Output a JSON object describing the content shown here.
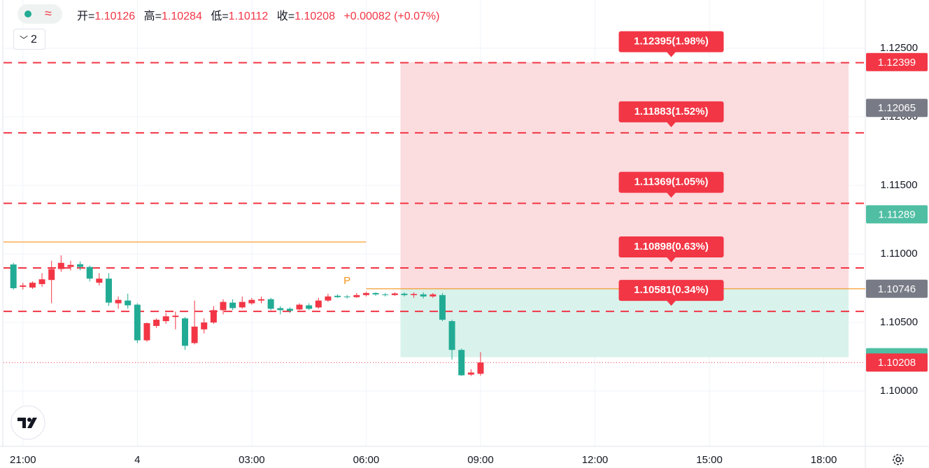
{
  "header": {
    "labels": [
      "开=",
      "高=",
      "低=",
      "收="
    ],
    "change": "+0.00082 (+0.07%)",
    "collapse_count": "2"
  },
  "chart_data": {
    "type": "candlestick",
    "x": [
      -3.25,
      -3,
      -2.75,
      -2.5,
      -2.25,
      -2,
      -1.75,
      -1.5,
      -1.25,
      -1,
      -0.75,
      -0.5,
      -0.25,
      0,
      0.25,
      0.5,
      0.75,
      1,
      1.25,
      1.5,
      1.75,
      2,
      2.25,
      2.5,
      2.75,
      3,
      3.25,
      3.5,
      3.75,
      4,
      4.25,
      4.5,
      4.75,
      5,
      5.25,
      5.5,
      5.75,
      6,
      6.25,
      6.5,
      6.75,
      7,
      7.25,
      7.5,
      7.75,
      8,
      8.25,
      8.5,
      8.75,
      9
    ],
    "open": [
      1.10923,
      1.1076,
      1.10755,
      1.1078,
      1.1081,
      1.1089,
      1.10905,
      1.10925,
      1.10905,
      1.1079,
      1.1082,
      1.1064,
      1.1066,
      1.1063,
      1.1037,
      1.10475,
      1.1051,
      1.1054,
      1.1053,
      1.1035,
      1.1045,
      1.105,
      1.1059,
      1.10645,
      1.1061,
      1.1064,
      1.1066,
      1.1067,
      1.10605,
      1.106,
      1.10595,
      1.10625,
      1.1061,
      1.1066,
      1.10695,
      1.1069,
      1.10685,
      1.107,
      1.10715,
      1.10705,
      1.107,
      1.1071,
      1.107,
      1.10705,
      1.1069,
      1.107,
      1.1051,
      1.103,
      1.1012,
      1.10126
    ],
    "high": [
      1.10935,
      1.1079,
      1.108,
      1.1086,
      1.1095,
      1.1099,
      1.1095,
      1.10945,
      1.10915,
      1.1086,
      1.1086,
      1.1069,
      1.1071,
      1.1064,
      1.105,
      1.1053,
      1.1057,
      1.1058,
      1.1054,
      1.1066,
      1.1053,
      1.1062,
      1.1067,
      1.1067,
      1.1069,
      1.1068,
      1.1069,
      1.1068,
      1.1062,
      1.1061,
      1.1064,
      1.1064,
      1.1068,
      1.1071,
      1.10705,
      1.107,
      1.10715,
      1.10725,
      1.1072,
      1.10715,
      1.1072,
      1.1072,
      1.1072,
      1.1072,
      1.10715,
      1.10715,
      1.1052,
      1.1031,
      1.1016,
      1.10284
    ],
    "low": [
      1.1074,
      1.1074,
      1.10745,
      1.1076,
      1.1064,
      1.1087,
      1.1088,
      1.1088,
      1.108,
      1.1077,
      1.1062,
      1.106,
      1.106,
      1.1035,
      1.1036,
      1.1046,
      1.1049,
      1.1045,
      1.103,
      1.1034,
      1.1042,
      1.1049,
      1.1056,
      1.1059,
      1.106,
      1.1063,
      1.1064,
      1.1059,
      1.1056,
      1.1057,
      1.1059,
      1.1059,
      1.106,
      1.1065,
      1.1068,
      1.10675,
      1.1068,
      1.1069,
      1.10695,
      1.1069,
      1.10695,
      1.1069,
      1.1068,
      1.10675,
      1.1068,
      1.1051,
      1.1023,
      1.1011,
      1.1011,
      1.10112
    ],
    "close": [
      1.1075,
      1.1077,
      1.1079,
      1.10815,
      1.1089,
      1.10935,
      1.1092,
      1.10905,
      1.1082,
      1.1082,
      1.10645,
      1.10665,
      1.10625,
      1.1037,
      1.10495,
      1.1052,
      1.10545,
      1.1055,
      1.1033,
      1.1047,
      1.105,
      1.1059,
      1.1065,
      1.10605,
      1.1065,
      1.10665,
      1.1067,
      1.106,
      1.1059,
      1.10585,
      1.1063,
      1.106,
      1.1066,
      1.1069,
      1.10685,
      1.10685,
      1.107,
      1.10715,
      1.10705,
      1.107,
      1.10712,
      1.107,
      1.10708,
      1.1069,
      1.10705,
      1.1052,
      1.103,
      1.10115,
      1.10135,
      1.10208
    ],
    "up_color": "#f23645",
    "down_color": "#22ab94",
    "xlim": [
      -3.51,
      19.09
    ],
    "ylim": [
      1.09597,
      1.12852
    ],
    "xticks": [
      {
        "value": -3,
        "label": "21:00"
      },
      {
        "value": 0,
        "label": "4"
      },
      {
        "value": 3,
        "label": "03:00"
      },
      {
        "value": 6,
        "label": "06:00"
      },
      {
        "value": 9,
        "label": "09:00"
      },
      {
        "value": 12,
        "label": "12:00"
      },
      {
        "value": 15,
        "label": "15:00"
      },
      {
        "value": 18,
        "label": "18:00"
      }
    ],
    "yticks": [
      {
        "value": 1.1,
        "label": "1.10000"
      },
      {
        "value": 1.105,
        "label": "1.10500"
      },
      {
        "value": 1.11,
        "label": "1.11000"
      },
      {
        "value": 1.115,
        "label": "1.11500"
      },
      {
        "value": 1.12,
        "label": "1.12000"
      },
      {
        "value": 1.125,
        "label": "1.12500"
      }
    ],
    "grid": true,
    "levels": [
      {
        "value": 1.12395,
        "label": "1.12395(1.98%)"
      },
      {
        "value": 1.11883,
        "label": "1.11883(1.52%)"
      },
      {
        "value": 1.11369,
        "label": "1.11369(1.05%)"
      },
      {
        "value": 1.10898,
        "label": "1.10898(0.63%)"
      },
      {
        "value": 1.10581,
        "label": "1.10581(0.34%)"
      }
    ],
    "level_color": "#f23645",
    "level_label_x": 14,
    "position": {
      "stop": 1.12399,
      "entry": 1.10746,
      "target": 1.10247,
      "x": [
        6.9,
        18.65
      ],
      "entry_from": 6,
      "stop_color": "#f23645",
      "entry_color": "#787b86",
      "target_color": "#4fbea3",
      "stop_fill": "#fbdcdf",
      "target_fill": "#d9f2ec",
      "line_color": "#f7931a"
    },
    "price_tags": [
      {
        "value": 1.12065,
        "color": "#787b86"
      },
      {
        "value": 1.11289,
        "color": "#4fbea3"
      }
    ],
    "close_tag_color": "#f23645",
    "lines": [
      {
        "value": 1.11087,
        "x": [
          -3.51,
          6
        ],
        "color": "#f7931a"
      }
    ],
    "marker": {
      "label": "P",
      "x": 5.5,
      "value": 1.108,
      "color": "#f7931a"
    }
  }
}
